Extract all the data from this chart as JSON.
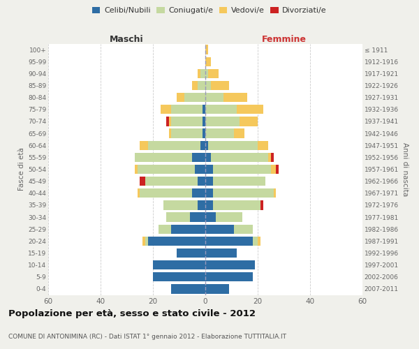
{
  "age_groups": [
    "0-4",
    "5-9",
    "10-14",
    "15-19",
    "20-24",
    "25-29",
    "30-34",
    "35-39",
    "40-44",
    "45-49",
    "50-54",
    "55-59",
    "60-64",
    "65-69",
    "70-74",
    "75-79",
    "80-84",
    "85-89",
    "90-94",
    "95-99",
    "100+"
  ],
  "birth_years": [
    "2007-2011",
    "2002-2006",
    "1997-2001",
    "1992-1996",
    "1987-1991",
    "1982-1986",
    "1977-1981",
    "1972-1976",
    "1967-1971",
    "1962-1966",
    "1957-1961",
    "1952-1956",
    "1947-1951",
    "1942-1946",
    "1937-1941",
    "1932-1936",
    "1927-1931",
    "1922-1926",
    "1917-1921",
    "1912-1916",
    "≤ 1911"
  ],
  "male": {
    "celibi": [
      13,
      20,
      20,
      11,
      22,
      13,
      6,
      3,
      5,
      3,
      4,
      5,
      2,
      1,
      1,
      1,
      0,
      0,
      0,
      0,
      0
    ],
    "coniugati": [
      0,
      0,
      0,
      0,
      1,
      5,
      9,
      13,
      20,
      20,
      22,
      22,
      20,
      12,
      12,
      12,
      8,
      3,
      2,
      0,
      0
    ],
    "vedovi": [
      0,
      0,
      0,
      0,
      1,
      0,
      0,
      0,
      1,
      0,
      1,
      0,
      3,
      1,
      1,
      4,
      3,
      2,
      1,
      0,
      0
    ],
    "divorziati": [
      0,
      0,
      0,
      0,
      0,
      0,
      0,
      0,
      0,
      2,
      0,
      0,
      0,
      0,
      1,
      0,
      0,
      0,
      0,
      0,
      0
    ]
  },
  "female": {
    "nubili": [
      9,
      18,
      19,
      12,
      18,
      11,
      4,
      3,
      3,
      3,
      3,
      2,
      1,
      0,
      0,
      0,
      0,
      0,
      0,
      0,
      0
    ],
    "coniugate": [
      0,
      0,
      0,
      0,
      2,
      7,
      10,
      18,
      23,
      20,
      22,
      22,
      19,
      11,
      13,
      12,
      7,
      2,
      1,
      0,
      0
    ],
    "vedove": [
      0,
      0,
      0,
      0,
      1,
      0,
      0,
      0,
      1,
      0,
      2,
      1,
      4,
      4,
      7,
      10,
      9,
      7,
      4,
      2,
      1
    ],
    "divorziate": [
      0,
      0,
      0,
      0,
      0,
      0,
      0,
      1,
      0,
      0,
      1,
      1,
      0,
      0,
      0,
      0,
      0,
      0,
      0,
      0,
      0
    ]
  },
  "color_celibi": "#2E6DA4",
  "color_coniugati": "#C5D9A0",
  "color_vedovi": "#F5C85C",
  "color_divorziati": "#CC2222",
  "xlim": 60,
  "title": "Popolazione per età, sesso e stato civile - 2012",
  "subtitle": "COMUNE DI ANTONIMINA (RC) - Dati ISTAT 1° gennaio 2012 - Elaborazione TUTTITALIA.IT",
  "ylabel_left": "Fasce di età",
  "ylabel_right": "Anni di nascita",
  "xlabel_left": "Maschi",
  "xlabel_right": "Femmine",
  "background_color": "#f0f0eb",
  "bar_bg_color": "#ffffff"
}
